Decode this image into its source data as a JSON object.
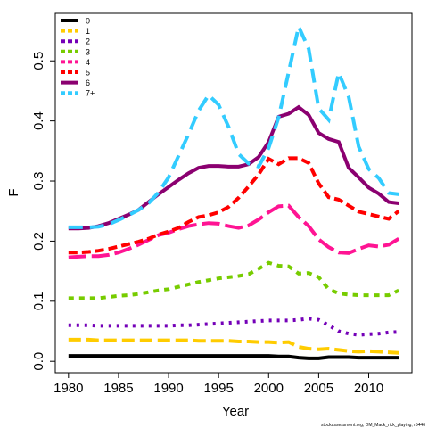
{
  "chart_data": {
    "type": "line",
    "x_label": "Year",
    "y_label": "F",
    "footnote": "stockassessment.org, DM_Mack_rick_playing, r5446",
    "legend_position": "top-left",
    "x": [
      1980,
      1981,
      1982,
      1983,
      1984,
      1985,
      1986,
      1987,
      1988,
      1989,
      1990,
      1991,
      1992,
      1993,
      1994,
      1995,
      1996,
      1997,
      1998,
      1999,
      2000,
      2001,
      2002,
      2003,
      2004,
      2005,
      2006,
      2007,
      2008,
      2009,
      2010,
      2011,
      2012,
      2013
    ],
    "xlim": [
      1978.68,
      2014.32
    ],
    "xticks": [
      1980,
      1985,
      1990,
      1995,
      2000,
      2005,
      2010
    ],
    "ylim": [
      -0.019,
      0.579
    ],
    "yticks": [
      {
        "value": 0,
        "label": "0.0"
      },
      {
        "value": 0.1,
        "label": "0.1"
      },
      {
        "value": 0.2,
        "label": "0.2"
      },
      {
        "value": 0.3,
        "label": "0.3"
      },
      {
        "value": 0.4,
        "label": "0.4"
      },
      {
        "value": 0.5,
        "label": "0.5"
      }
    ],
    "series": [
      {
        "name": "0",
        "color": "#000000",
        "dash": "none",
        "values": [
          0.009,
          0.009,
          0.009,
          0.009,
          0.009,
          0.009,
          0.009,
          0.009,
          0.009,
          0.009,
          0.009,
          0.009,
          0.009,
          0.009,
          0.009,
          0.009,
          0.009,
          0.009,
          0.009,
          0.009,
          0.009,
          0.008,
          0.008,
          0.006,
          0.005,
          0.005,
          0.007,
          0.007,
          0.007,
          0.006,
          0.006,
          0.006,
          0.006,
          0.006
        ]
      },
      {
        "name": "1",
        "color": "#FFCC00",
        "dash": "14 6",
        "values": [
          0.036,
          0.036,
          0.036,
          0.035,
          0.035,
          0.035,
          0.035,
          0.035,
          0.035,
          0.035,
          0.035,
          0.035,
          0.035,
          0.034,
          0.034,
          0.034,
          0.034,
          0.033,
          0.033,
          0.032,
          0.032,
          0.031,
          0.032,
          0.024,
          0.021,
          0.02,
          0.021,
          0.019,
          0.017,
          0.016,
          0.017,
          0.016,
          0.015,
          0.014
        ]
      },
      {
        "name": "2",
        "color": "#7400B8",
        "dash": "3 6",
        "values": [
          0.06,
          0.06,
          0.06,
          0.059,
          0.059,
          0.059,
          0.059,
          0.059,
          0.059,
          0.059,
          0.059,
          0.06,
          0.06,
          0.061,
          0.062,
          0.063,
          0.064,
          0.065,
          0.066,
          0.067,
          0.068,
          0.068,
          0.068,
          0.069,
          0.071,
          0.069,
          0.06,
          0.05,
          0.046,
          0.044,
          0.045,
          0.046,
          0.048,
          0.049
        ]
      },
      {
        "name": "3",
        "color": "#77CC00",
        "dash": "6 6",
        "values": [
          0.105,
          0.105,
          0.105,
          0.105,
          0.107,
          0.109,
          0.11,
          0.112,
          0.115,
          0.118,
          0.12,
          0.124,
          0.128,
          0.132,
          0.135,
          0.138,
          0.14,
          0.142,
          0.145,
          0.154,
          0.164,
          0.159,
          0.158,
          0.146,
          0.147,
          0.14,
          0.12,
          0.113,
          0.111,
          0.11,
          0.11,
          0.11,
          0.11,
          0.118
        ]
      },
      {
        "name": "4",
        "color": "#FF1493",
        "dash": "20 6",
        "values": [
          0.173,
          0.174,
          0.175,
          0.175,
          0.177,
          0.181,
          0.187,
          0.194,
          0.202,
          0.21,
          0.214,
          0.22,
          0.225,
          0.228,
          0.23,
          0.229,
          0.225,
          0.222,
          0.226,
          0.236,
          0.248,
          0.258,
          0.259,
          0.24,
          0.225,
          0.203,
          0.19,
          0.181,
          0.18,
          0.187,
          0.193,
          0.191,
          0.194,
          0.204
        ]
      },
      {
        "name": "5",
        "color": "#FF0000",
        "dash": "10 5",
        "values": [
          0.181,
          0.181,
          0.182,
          0.184,
          0.187,
          0.191,
          0.195,
          0.199,
          0.204,
          0.211,
          0.216,
          0.222,
          0.232,
          0.24,
          0.243,
          0.248,
          0.257,
          0.272,
          0.291,
          0.311,
          0.337,
          0.328,
          0.338,
          0.338,
          0.33,
          0.296,
          0.273,
          0.269,
          0.259,
          0.249,
          0.245,
          0.241,
          0.237,
          0.25
        ]
      },
      {
        "name": "6",
        "color": "#8B0070",
        "dash": "none",
        "values": [
          0.221,
          0.221,
          0.222,
          0.225,
          0.23,
          0.237,
          0.244,
          0.252,
          0.265,
          0.278,
          0.29,
          0.302,
          0.313,
          0.322,
          0.325,
          0.325,
          0.324,
          0.324,
          0.328,
          0.34,
          0.365,
          0.407,
          0.412,
          0.423,
          0.41,
          0.38,
          0.37,
          0.365,
          0.322,
          0.306,
          0.289,
          0.279,
          0.265,
          0.263
        ]
      },
      {
        "name": "7+",
        "color": "#33CCFF",
        "dash": "16 8",
        "values": [
          0.223,
          0.223,
          0.223,
          0.224,
          0.228,
          0.235,
          0.243,
          0.252,
          0.263,
          0.281,
          0.306,
          0.342,
          0.378,
          0.417,
          0.443,
          0.427,
          0.39,
          0.345,
          0.329,
          0.324,
          0.355,
          0.406,
          0.481,
          0.557,
          0.52,
          0.421,
          0.402,
          0.48,
          0.44,
          0.357,
          0.32,
          0.305,
          0.28,
          0.278
        ]
      }
    ]
  }
}
